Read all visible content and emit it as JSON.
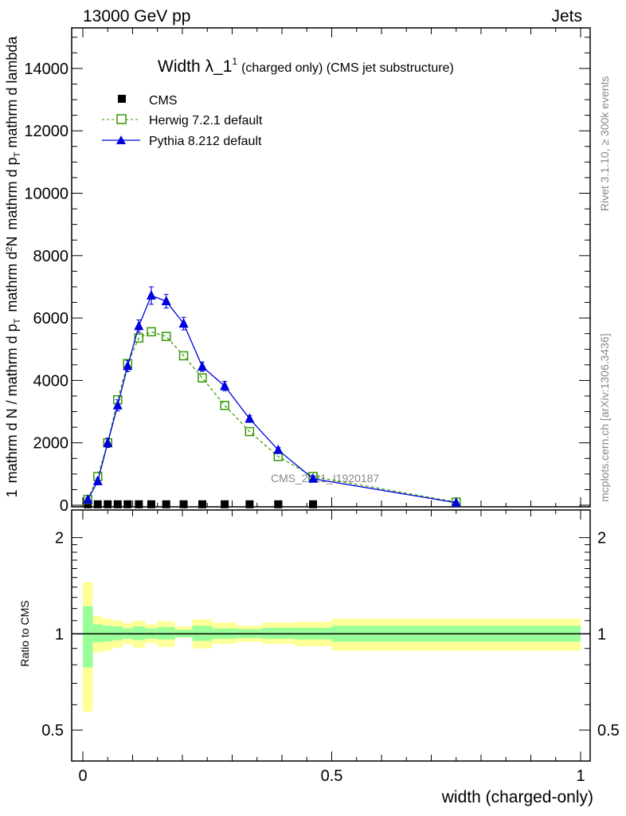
{
  "header": {
    "left": "13000 GeV pp",
    "right": "Jets"
  },
  "side_text": {
    "rivet": "Rivet 3.1.10, ≥ 300k events",
    "mcplots": "mcplots.cern.ch [arXiv:1306.3436]"
  },
  "watermark": "CMS_2021_I1920187",
  "chart_data": [
    {
      "type": "line",
      "title": {
        "main": "Width λ_1",
        "sup": "1",
        "sub": "(charged only) (CMS jet substructure)"
      },
      "ylabel": {
        "num1": "1",
        "den1": "mathrm d N / mathrm d p",
        "den1_sub": "T",
        "num2": "mathrm d",
        "num2_sup": "2",
        "num2_tail": "N",
        "den2": "mathrm d p",
        "den2_sub": "T",
        "den2_tail": " mathrm d lambda"
      },
      "xlabel": "width (charged-only)",
      "xlim": [
        0,
        1
      ],
      "ylim": [
        0,
        15300
      ],
      "y_ticks": [
        "0",
        "2000",
        "4000",
        "6000",
        "8000",
        "10000",
        "12000",
        "14000"
      ],
      "legend": {
        "placement": "top-left",
        "entries": [
          "CMS",
          "Herwig 7.2.1 default",
          "Pythia 8.212 default"
        ]
      },
      "bin_edges": [
        0,
        0.02,
        0.04,
        0.06,
        0.08,
        0.1,
        0.125,
        0.15,
        0.185,
        0.22,
        0.26,
        0.31,
        0.36,
        0.425,
        0.5,
        1.0
      ],
      "x": [
        0.01,
        0.03,
        0.05,
        0.07,
        0.09,
        0.1125,
        0.1375,
        0.1675,
        0.2025,
        0.24,
        0.285,
        0.335,
        0.3925,
        0.4625,
        0.75
      ],
      "series": [
        {
          "name": "CMS",
          "color": "#000000",
          "values": [
            30,
            30,
            30,
            30,
            30,
            30,
            30,
            30,
            30,
            30,
            30,
            30,
            30,
            30,
            0
          ]
        },
        {
          "name": "Herwig 7.2.1 default",
          "color": "#339900",
          "values": [
            180,
            920,
            2000,
            3380,
            4540,
            5360,
            5560,
            5410,
            4790,
            4080,
            3200,
            2360,
            1560,
            920,
            100
          ]
        },
        {
          "name": "Pythia 8.212 default",
          "color": "#0000dd",
          "values": [
            180,
            770,
            2000,
            3200,
            4460,
            5740,
            6720,
            6540,
            5820,
            4440,
            3820,
            2770,
            1770,
            850,
            80
          ],
          "errors": [
            60,
            100,
            150,
            180,
            180,
            200,
            280,
            220,
            200,
            150,
            150,
            100,
            80,
            60,
            40
          ]
        }
      ]
    },
    {
      "type": "area",
      "ylabel": "Ratio to CMS",
      "yscale": "log",
      "ylim": [
        0.4,
        2.44
      ],
      "y_ticks": [
        "0.5",
        "1",
        "2"
      ],
      "x_ticks": [
        "0",
        "0.5",
        "1"
      ],
      "band_colors": {
        "inner": "#99ff99",
        "outer": "#ffff99"
      },
      "inner_band": {
        "lo": [
          0.785,
          0.94,
          0.945,
          0.955,
          0.965,
          0.955,
          0.965,
          0.96,
          0.975,
          0.95,
          0.965,
          0.97,
          0.965,
          0.96,
          0.945
        ],
        "hi": [
          1.22,
          1.07,
          1.06,
          1.055,
          1.04,
          1.055,
          1.04,
          1.05,
          1.03,
          1.06,
          1.04,
          1.035,
          1.045,
          1.045,
          1.06
        ]
      },
      "outer_band": {
        "lo": [
          0.57,
          0.875,
          0.885,
          0.905,
          0.93,
          0.905,
          0.935,
          0.91,
          0.975,
          0.9,
          0.93,
          0.945,
          0.93,
          0.915,
          0.885
        ],
        "hi": [
          1.45,
          1.135,
          1.115,
          1.1,
          1.08,
          1.1,
          1.07,
          1.095,
          1.055,
          1.11,
          1.085,
          1.06,
          1.085,
          1.09,
          1.115
        ]
      }
    }
  ]
}
